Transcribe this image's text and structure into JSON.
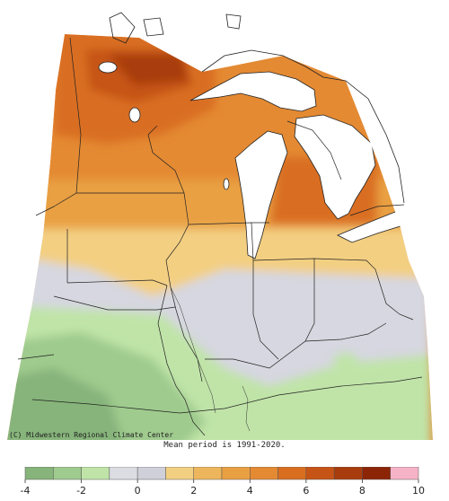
{
  "map": {
    "credit": "(C) Midwestern Regional Climate Center",
    "mean_period": "Mean period is 1991-2020."
  },
  "legend": {
    "ticks": [
      "-4",
      "-2",
      "0",
      "2",
      "4",
      "6",
      "8",
      "10"
    ],
    "bins": [
      {
        "from": -4,
        "to": -3,
        "color": "#86b47a"
      },
      {
        "from": -3,
        "to": -2,
        "color": "#9fcb8e"
      },
      {
        "from": -2,
        "to": -1,
        "color": "#c0e4a8"
      },
      {
        "from": -1,
        "to": 0,
        "color": "#dcdde3"
      },
      {
        "from": 0,
        "to": 1,
        "color": "#cfd0da"
      },
      {
        "from": 1,
        "to": 2,
        "color": "#f3cf82"
      },
      {
        "from": 2,
        "to": 3,
        "color": "#eeb65c"
      },
      {
        "from": 3,
        "to": 4,
        "color": "#e9a043"
      },
      {
        "from": 4,
        "to": 5,
        "color": "#e48a33"
      },
      {
        "from": 5,
        "to": 6,
        "color": "#d96e21"
      },
      {
        "from": 6,
        "to": 7,
        "color": "#c65416"
      },
      {
        "from": 7,
        "to": 8,
        "color": "#a93c0d"
      },
      {
        "from": 8,
        "to": 9,
        "color": "#8c2506"
      },
      {
        "from": 9,
        "to": 10,
        "color": "#f6b3c7"
      }
    ]
  }
}
